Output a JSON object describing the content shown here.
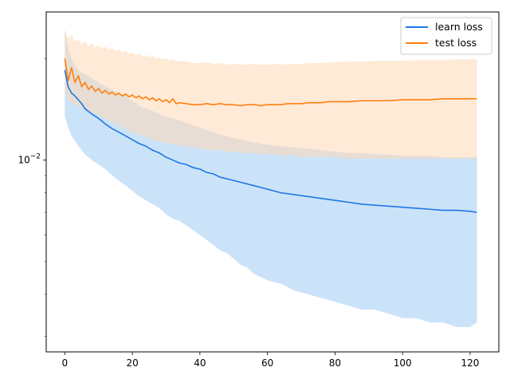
{
  "chart_data": {
    "type": "line",
    "title": "",
    "xlabel": "",
    "ylabel": "",
    "yscale": "log",
    "xlim": [
      -5.5,
      128.5
    ],
    "ylim": [
      0.0027,
      0.0275
    ],
    "xticks": [
      0,
      20,
      40,
      60,
      80,
      100,
      120
    ],
    "yticks_major": [
      {
        "value": 0.01,
        "base": "10",
        "exp": "−2"
      }
    ],
    "yticks_minor": [
      0.003,
      0.004,
      0.005,
      0.006,
      0.007,
      0.008,
      0.009,
      0.02
    ],
    "legend": {
      "position": "top-right",
      "entries": [
        "learn loss",
        "test loss"
      ]
    },
    "grid": false,
    "series": [
      {
        "name": "learn loss",
        "color": "#1f77e4",
        "band_color": "#a9d0f5",
        "x": [
          0,
          1,
          2,
          3,
          4,
          5,
          6,
          8,
          10,
          12,
          14,
          16,
          18,
          20,
          22,
          24,
          26,
          28,
          30,
          32,
          34,
          36,
          38,
          40,
          42,
          44,
          46,
          48,
          50,
          52,
          54,
          56,
          58,
          60,
          64,
          68,
          72,
          76,
          80,
          84,
          88,
          92,
          96,
          100,
          104,
          108,
          112,
          116,
          120,
          122
        ],
        "y": [
          0.0185,
          0.0165,
          0.0158,
          0.0155,
          0.0151,
          0.0147,
          0.0142,
          0.0137,
          0.0133,
          0.0128,
          0.0124,
          0.0121,
          0.0118,
          0.0115,
          0.0112,
          0.011,
          0.0107,
          0.0105,
          0.0102,
          0.01,
          0.0098,
          0.0097,
          0.0095,
          0.0094,
          0.0092,
          0.0091,
          0.0089,
          0.0088,
          0.0087,
          0.0086,
          0.0085,
          0.0084,
          0.0083,
          0.0082,
          0.008,
          0.0079,
          0.0078,
          0.0077,
          0.0076,
          0.0075,
          0.0074,
          0.00735,
          0.0073,
          0.00725,
          0.0072,
          0.00715,
          0.0071,
          0.0071,
          0.00705,
          0.007
        ],
        "upper": [
          0.0245,
          0.0215,
          0.02,
          0.019,
          0.0185,
          0.0182,
          0.018,
          0.0175,
          0.017,
          0.0165,
          0.0162,
          0.0158,
          0.0155,
          0.015,
          0.0145,
          0.0142,
          0.014,
          0.0137,
          0.0134,
          0.0133,
          0.0131,
          0.0129,
          0.0127,
          0.0125,
          0.0123,
          0.0121,
          0.0119,
          0.0118,
          0.0116,
          0.0115,
          0.0114,
          0.0113,
          0.0112,
          0.0111,
          0.011,
          0.0109,
          0.0108,
          0.0107,
          0.0106,
          0.0105,
          0.0105,
          0.0104,
          0.0104,
          0.0103,
          0.0103,
          0.0103,
          0.0102,
          0.0102,
          0.0102,
          0.0102
        ],
        "lower": [
          0.0135,
          0.0125,
          0.0118,
          0.0114,
          0.011,
          0.0107,
          0.0104,
          0.01,
          0.0097,
          0.0094,
          0.009,
          0.0087,
          0.0084,
          0.0081,
          0.0078,
          0.0076,
          0.0074,
          0.0072,
          0.0069,
          0.0067,
          0.0066,
          0.0064,
          0.0062,
          0.006,
          0.0058,
          0.0056,
          0.0054,
          0.0053,
          0.0051,
          0.0049,
          0.0048,
          0.0046,
          0.0045,
          0.0044,
          0.0043,
          0.0041,
          0.004,
          0.0039,
          0.0038,
          0.0037,
          0.0036,
          0.0036,
          0.0035,
          0.0034,
          0.0034,
          0.0033,
          0.0033,
          0.0032,
          0.0032,
          0.0033
        ]
      },
      {
        "name": "test loss",
        "color": "#ff7f0e",
        "band_color": "#ffd8b6",
        "x": [
          0,
          1,
          2,
          3,
          4,
          5,
          6,
          7,
          8,
          9,
          10,
          11,
          12,
          13,
          14,
          15,
          16,
          17,
          18,
          19,
          20,
          21,
          22,
          23,
          24,
          25,
          26,
          27,
          28,
          29,
          30,
          31,
          32,
          33,
          34,
          36,
          38,
          40,
          42,
          44,
          46,
          48,
          50,
          52,
          54,
          56,
          58,
          60,
          62,
          64,
          66,
          68,
          70,
          72,
          74,
          76,
          78,
          80,
          84,
          88,
          92,
          96,
          100,
          104,
          108,
          112,
          116,
          120,
          122
        ],
        "y": [
          0.02,
          0.0172,
          0.0188,
          0.017,
          0.0178,
          0.0165,
          0.017,
          0.0162,
          0.0166,
          0.016,
          0.0163,
          0.0158,
          0.0161,
          0.0157,
          0.0159,
          0.0156,
          0.0158,
          0.0155,
          0.0157,
          0.0154,
          0.0156,
          0.0153,
          0.0155,
          0.0152,
          0.0154,
          0.0151,
          0.0153,
          0.015,
          0.0152,
          0.0149,
          0.0151,
          0.0148,
          0.0152,
          0.0147,
          0.0148,
          0.0147,
          0.0146,
          0.0146,
          0.0147,
          0.0146,
          0.0147,
          0.0146,
          0.0146,
          0.0145,
          0.0146,
          0.0146,
          0.0145,
          0.0146,
          0.0146,
          0.0146,
          0.0147,
          0.0147,
          0.0147,
          0.0148,
          0.0148,
          0.0148,
          0.0149,
          0.0149,
          0.0149,
          0.015,
          0.015,
          0.015,
          0.0151,
          0.0151,
          0.0151,
          0.0152,
          0.0152,
          0.0152,
          0.0152
        ],
        "upper": [
          0.024,
          0.023,
          0.0235,
          0.0225,
          0.0228,
          0.022,
          0.0225,
          0.0218,
          0.0222,
          0.0216,
          0.0219,
          0.0214,
          0.0217,
          0.0212,
          0.0215,
          0.0211,
          0.0213,
          0.0209,
          0.0211,
          0.0207,
          0.0209,
          0.0205,
          0.0207,
          0.0203,
          0.0205,
          0.0202,
          0.0204,
          0.02,
          0.0202,
          0.0199,
          0.02,
          0.0197,
          0.0199,
          0.0196,
          0.0197,
          0.0196,
          0.0194,
          0.0194,
          0.0195,
          0.0193,
          0.0194,
          0.0192,
          0.0193,
          0.0192,
          0.0192,
          0.0193,
          0.0192,
          0.0192,
          0.0193,
          0.0192,
          0.0193,
          0.0193,
          0.0193,
          0.0194,
          0.0194,
          0.0194,
          0.0195,
          0.0195,
          0.0196,
          0.0196,
          0.0197,
          0.0197,
          0.0197,
          0.0198,
          0.0198,
          0.0198,
          0.0199,
          0.0199,
          0.0199
        ],
        "lower": [
          0.016,
          0.015,
          0.0148,
          0.0146,
          0.0145,
          0.0143,
          0.0142,
          0.014,
          0.0139,
          0.0137,
          0.0136,
          0.0134,
          0.0133,
          0.0131,
          0.013,
          0.0128,
          0.0127,
          0.0125,
          0.0124,
          0.0122,
          0.0121,
          0.012,
          0.0119,
          0.0118,
          0.0117,
          0.0116,
          0.0115,
          0.0114,
          0.0114,
          0.0113,
          0.0112,
          0.0112,
          0.0111,
          0.0111,
          0.011,
          0.011,
          0.0109,
          0.0108,
          0.0108,
          0.0107,
          0.0107,
          0.0106,
          0.0106,
          0.0105,
          0.0105,
          0.0105,
          0.0104,
          0.0104,
          0.0104,
          0.0103,
          0.0103,
          0.0103,
          0.0102,
          0.0102,
          0.0102,
          0.0102,
          0.0102,
          0.0102,
          0.0101,
          0.0101,
          0.0101,
          0.0101,
          0.0101,
          0.0101,
          0.0101,
          0.0101,
          0.0101,
          0.0101,
          0.0101
        ]
      }
    ]
  }
}
